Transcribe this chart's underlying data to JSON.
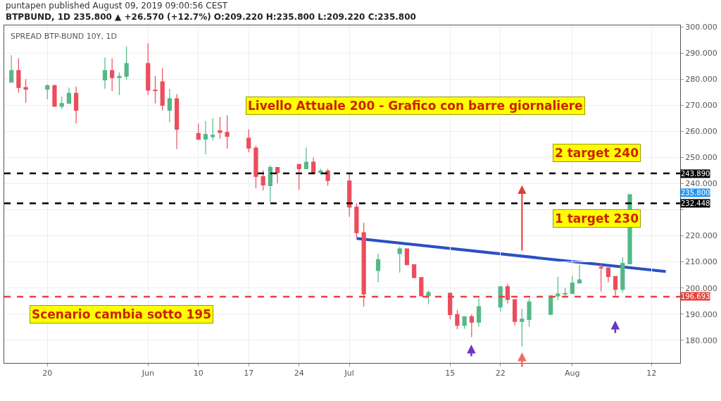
{
  "chart_data": {
    "type": "candlestick",
    "title": "puntapen published August 09, 2019 09:00:56 CEST",
    "subtitle": "BTPBUND, 1D 235.800 ▲ +26.570 (+12.7%) O:209.220 H:235.800 L:209.220 C:235.800",
    "annotations": [
      "SPREAD BTP-BUND 10Y, 1D",
      "Livello Attuale 200 - Grafico con barre giornaliere",
      "2 target 240",
      "1 target 230",
      "Scenario cambia sotto 195",
      "235.800"
    ],
    "x": [
      "2019-05-15",
      "2019-05-16",
      "2019-05-17",
      "2019-05-20",
      "2019-05-21",
      "2019-05-22",
      "2019-05-23",
      "2019-05-24",
      "2019-05-28",
      "2019-05-29",
      "2019-05-30",
      "2019-05-31",
      "2019-06-03",
      "2019-06-04",
      "2019-06-05",
      "2019-06-06",
      "2019-06-07",
      "2019-06-10",
      "2019-06-11",
      "2019-06-12",
      "2019-06-13",
      "2019-06-14",
      "2019-06-17",
      "2019-06-18",
      "2019-06-19",
      "2019-06-20",
      "2019-06-21",
      "2019-06-24",
      "2019-06-25",
      "2019-06-26",
      "2019-06-27",
      "2019-06-28",
      "2019-07-01",
      "2019-07-02",
      "2019-07-03",
      "2019-07-05",
      "2019-07-08",
      "2019-07-09",
      "2019-07-10",
      "2019-07-11",
      "2019-07-12",
      "2019-07-15",
      "2019-07-16",
      "2019-07-17",
      "2019-07-18",
      "2019-07-19",
      "2019-07-22",
      "2019-07-23",
      "2019-07-24",
      "2019-07-25",
      "2019-07-26",
      "2019-07-29",
      "2019-07-30",
      "2019-07-31",
      "2019-08-01",
      "2019-08-02",
      "2019-08-05",
      "2019-08-06",
      "2019-08-07",
      "2019-08-08",
      "2019-08-09"
    ],
    "ohlc": [
      [
        278.8,
        289.2,
        278.8,
        283.3
      ],
      [
        283.3,
        288.0,
        274.8,
        276.8
      ],
      [
        276.8,
        280.0,
        271.0,
        276.1
      ],
      [
        276.1,
        278.0,
        272.3,
        277.5
      ],
      [
        277.5,
        277.9,
        269.6,
        269.6
      ],
      [
        269.6,
        273.4,
        268.7,
        270.7
      ],
      [
        270.7,
        276.8,
        270.7,
        274.6
      ],
      [
        274.6,
        277.2,
        263.1,
        268.0
      ],
      [
        279.7,
        288.3,
        276.3,
        283.3
      ],
      [
        283.3,
        288.0,
        275.4,
        280.6
      ],
      [
        280.6,
        282.6,
        273.9,
        281.1
      ],
      [
        281.1,
        292.5,
        279.7,
        286.0
      ],
      [
        286.0,
        293.8,
        273.9,
        275.8
      ],
      [
        275.8,
        281.2,
        270.7,
        275.6
      ],
      [
        279.0,
        284.2,
        268.0,
        270.0
      ],
      [
        268.0,
        276.3,
        263.5,
        272.5
      ],
      [
        272.5,
        274.3,
        253.2,
        260.8
      ],
      [
        259.2,
        263.0,
        256.6,
        257.0
      ],
      [
        257.0,
        264.0,
        251.2,
        258.8
      ],
      [
        258.0,
        265.0,
        256.6,
        258.5
      ],
      [
        260.2,
        265.5,
        257.2,
        259.6
      ],
      [
        259.6,
        266.2,
        253.4,
        258.1
      ],
      [
        257.4,
        260.8,
        252.0,
        253.6
      ],
      [
        253.6,
        254.5,
        238.2,
        242.7
      ],
      [
        242.7,
        245.1,
        237.4,
        239.5
      ],
      [
        239.2,
        247.1,
        232.9,
        246.2
      ],
      [
        246.2,
        246.2,
        240.1,
        244.2
      ],
      [
        247.3,
        247.3,
        237.6,
        245.7
      ],
      [
        245.7,
        253.8,
        245.7,
        248.2
      ],
      [
        248.2,
        250.0,
        243.7,
        243.9
      ],
      [
        244.2,
        245.7,
        243.3,
        244.8
      ],
      [
        244.8,
        245.7,
        239.2,
        241.2
      ],
      [
        241.0,
        244.2,
        227.3,
        231.0
      ],
      [
        231.0,
        232.5,
        219.4,
        221.2
      ],
      [
        221.2,
        225.0,
        192.9,
        197.7
      ],
      [
        206.7,
        213.2,
        202.2,
        210.9
      ],
      [
        213.2,
        215.8,
        205.9,
        215.0
      ],
      [
        215.0,
        215.0,
        208.9,
        208.9
      ],
      [
        208.9,
        208.9,
        204.0,
        204.0
      ],
      [
        204.0,
        204.0,
        197.0,
        197.0
      ],
      [
        197.0,
        199.2,
        193.8,
        198.3
      ],
      [
        198.0,
        198.3,
        188.0,
        189.8
      ],
      [
        189.8,
        191.6,
        184.2,
        185.7
      ],
      [
        185.7,
        189.0,
        184.4,
        189.0
      ],
      [
        189.0,
        189.9,
        181.2,
        186.9
      ],
      [
        186.9,
        196.0,
        185.2,
        192.9
      ],
      [
        192.7,
        200.5,
        191.1,
        200.5
      ],
      [
        200.5,
        201.6,
        194.1,
        195.6
      ],
      [
        195.6,
        195.6,
        185.7,
        187.2
      ],
      [
        187.2,
        192.0,
        177.6,
        188.1
      ],
      [
        187.9,
        196.0,
        185.2,
        194.7
      ],
      [
        189.9,
        197.0,
        189.9,
        197.0
      ],
      [
        197.0,
        204.3,
        195.3,
        197.7
      ],
      [
        197.7,
        200.1,
        197.0,
        197.9
      ],
      [
        197.9,
        204.6,
        197.7,
        201.9
      ],
      [
        201.9,
        208.8,
        201.9,
        203.1
      ],
      [
        208.0,
        209.5,
        198.7,
        207.7
      ],
      [
        207.7,
        207.9,
        202.2,
        204.4
      ],
      [
        204.4,
        204.4,
        197.1,
        199.5
      ],
      [
        199.5,
        211.8,
        198.3,
        209.4
      ],
      [
        209.22,
        235.8,
        209.22,
        235.8
      ]
    ],
    "colors": [
      "#53b987",
      "#eb4d5c",
      "#eb4d5c",
      "#53b987",
      "#eb4d5c",
      "#53b987",
      "#53b987",
      "#eb4d5c",
      "#53b987",
      "#eb4d5c",
      "#53b987",
      "#53b987",
      "#eb4d5c",
      "#eb4d5c",
      "#eb4d5c",
      "#53b987",
      "#eb4d5c",
      "#eb4d5c",
      "#53b987",
      "#53b987",
      "#eb4d5c",
      "#eb4d5c",
      "#eb4d5c",
      "#eb4d5c",
      "#eb4d5c",
      "#53b987",
      "#eb4d5c",
      "#eb4d5c",
      "#53b987",
      "#eb4d5c",
      "#53b987",
      "#eb4d5c",
      "#eb4d5c",
      "#eb4d5c",
      "#eb4d5c",
      "#53b987",
      "#53b987",
      "#eb4d5c",
      "#eb4d5c",
      "#eb4d5c",
      "#53b987",
      "#eb4d5c",
      "#eb4d5c",
      "#53b987",
      "#eb4d5c",
      "#53b987",
      "#53b987",
      "#eb4d5c",
      "#eb4d5c",
      "#53b987",
      "#53b987",
      "#53b987",
      "#53b987",
      "#53b987",
      "#53b987",
      "#53b987",
      "#eb4d5c",
      "#eb4d5c",
      "#eb4d5c",
      "#53b987",
      "#53b987"
    ],
    "series": [
      {
        "type": "line",
        "x": [
          "2019-07-02",
          "2019-08-14"
        ],
        "values": [
          219.0,
          206.3
        ],
        "color": "#2b4fc4"
      }
    ],
    "ref_lines": [
      {
        "axis": "y",
        "value": 243.89,
        "label": "243.890",
        "color": "#000000",
        "line_style": "dashed"
      },
      {
        "axis": "y",
        "value": 232.448,
        "label": "232.448",
        "color": "#000000",
        "line_style": "dashed"
      },
      {
        "axis": "y",
        "value": 196.693,
        "label": "196.693",
        "color": "#e8423a",
        "line_style": "dashed"
      }
    ],
    "xlim": [
      "2019-05-14",
      "2019-08-16"
    ],
    "xticks": [
      {
        "value": "2019-05-20",
        "label": "20"
      },
      {
        "value": "2019-06-03",
        "label": "Jun"
      },
      {
        "value": "2019-06-10",
        "label": "10"
      },
      {
        "value": "2019-06-17",
        "label": "17"
      },
      {
        "value": "2019-06-24",
        "label": "24"
      },
      {
        "value": "2019-07-01",
        "label": "Jul"
      },
      {
        "value": "2019-07-15",
        "label": "15"
      },
      {
        "value": "2019-07-22",
        "label": "22"
      },
      {
        "value": "2019-08-01",
        "label": "Aug"
      },
      {
        "value": "2019-08-12",
        "label": "12"
      }
    ],
    "ylim": [
      171.3,
      300.6
    ],
    "yticks": [
      {
        "value": 180,
        "label": "180.000"
      },
      {
        "value": 190,
        "label": "190.000"
      },
      {
        "value": 200,
        "label": "200.000"
      },
      {
        "value": 210,
        "label": "210.000"
      },
      {
        "value": 220,
        "label": "220.000"
      },
      {
        "value": 230,
        "label": null
      },
      {
        "value": 240,
        "label": "240.000"
      },
      {
        "value": 250,
        "label": "250.000"
      },
      {
        "value": 260,
        "label": "260.000"
      },
      {
        "value": 270,
        "label": "270.000"
      },
      {
        "value": 280,
        "label": "280.000"
      },
      {
        "value": 290,
        "label": "290.000"
      },
      {
        "value": 300,
        "label": "300.000"
      }
    ],
    "grid": true
  }
}
